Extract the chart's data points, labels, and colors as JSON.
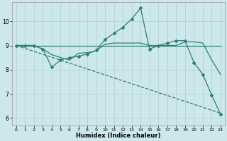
{
  "xlabel": "Humidex (Indice chaleur)",
  "bg_color": "#cce8ea",
  "grid_color": "#b0ced4",
  "line_color": "#2e7e78",
  "xlim": [
    -0.5,
    23.5
  ],
  "ylim": [
    5.7,
    10.8
  ],
  "yticks": [
    6,
    7,
    8,
    9,
    10
  ],
  "xticks": [
    0,
    1,
    2,
    3,
    4,
    5,
    6,
    7,
    8,
    9,
    10,
    11,
    12,
    13,
    14,
    15,
    16,
    17,
    18,
    19,
    20,
    21,
    22,
    23
  ],
  "lines": [
    {
      "x": [
        0,
        1,
        2,
        3,
        4,
        5,
        6,
        7,
        8,
        9,
        10,
        11,
        12,
        13,
        14,
        15,
        16,
        17,
        18,
        19,
        20,
        21,
        22,
        23
      ],
      "y": [
        9.0,
        9.0,
        9.0,
        9.0,
        9.0,
        9.0,
        9.0,
        9.0,
        9.0,
        9.0,
        9.0,
        9.0,
        9.0,
        9.0,
        9.0,
        9.0,
        9.0,
        9.0,
        9.0,
        9.0,
        9.0,
        9.0,
        9.0,
        9.0
      ],
      "marker": false,
      "dashed": false
    },
    {
      "x": [
        0,
        1,
        2,
        3,
        4,
        5,
        6,
        7,
        8,
        9,
        10,
        11,
        12,
        13,
        14,
        15,
        16,
        17,
        18,
        19,
        20,
        21,
        22,
        23
      ],
      "y": [
        9.0,
        9.0,
        9.0,
        8.85,
        8.62,
        8.5,
        8.4,
        8.68,
        8.7,
        8.78,
        9.05,
        9.1,
        9.1,
        9.1,
        9.1,
        9.0,
        9.0,
        9.0,
        9.0,
        9.15,
        9.15,
        9.1,
        8.4,
        7.8
      ],
      "marker": false,
      "dashed": false
    },
    {
      "x": [
        0,
        1,
        2,
        3,
        4,
        5,
        6,
        7,
        8,
        9,
        10,
        11,
        12,
        13,
        14,
        15,
        16,
        17,
        18,
        19,
        20,
        21,
        22,
        23
      ],
      "y": [
        9.0,
        9.0,
        9.0,
        8.85,
        8.1,
        8.4,
        8.5,
        8.55,
        8.65,
        8.8,
        9.25,
        9.5,
        9.75,
        10.1,
        10.55,
        8.85,
        9.0,
        9.1,
        9.2,
        9.2,
        8.3,
        7.8,
        6.95,
        6.15
      ],
      "marker": true,
      "dashed": false
    },
    {
      "x": [
        0,
        23
      ],
      "y": [
        9.0,
        6.2
      ],
      "marker": false,
      "dashed": true
    }
  ]
}
